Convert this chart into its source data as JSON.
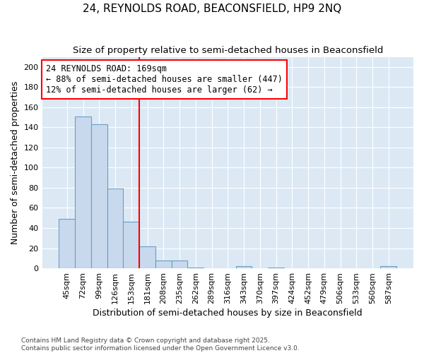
{
  "title": "24, REYNOLDS ROAD, BEACONSFIELD, HP9 2NQ",
  "subtitle": "Size of property relative to semi-detached houses in Beaconsfield",
  "xlabel": "Distribution of semi-detached houses by size in Beaconsfield",
  "ylabel": "Number of semi-detached properties",
  "categories": [
    "45sqm",
    "72sqm",
    "99sqm",
    "126sqm",
    "153sqm",
    "181sqm",
    "208sqm",
    "235sqm",
    "262sqm",
    "289sqm",
    "316sqm",
    "343sqm",
    "370sqm",
    "397sqm",
    "424sqm",
    "452sqm",
    "479sqm",
    "506sqm",
    "533sqm",
    "560sqm",
    "587sqm"
  ],
  "values": [
    49,
    151,
    143,
    79,
    46,
    22,
    8,
    8,
    1,
    0,
    0,
    2,
    0,
    1,
    0,
    0,
    0,
    0,
    0,
    0,
    2
  ],
  "bar_facecolor": "#c8d9ee",
  "bar_edgecolor": "#6b9dc2",
  "red_line_index": 5,
  "annotation_line1": "24 REYNOLDS ROAD: 169sqm",
  "annotation_line2": "← 88% of semi-detached houses are smaller (447)",
  "annotation_line3": "12% of semi-detached houses are larger (62) →",
  "ylim": [
    0,
    210
  ],
  "yticks": [
    0,
    20,
    40,
    60,
    80,
    100,
    120,
    140,
    160,
    180,
    200
  ],
  "fig_facecolor": "#ffffff",
  "ax_facecolor": "#dce9f5",
  "grid_color": "#ffffff",
  "title_fontsize": 11,
  "subtitle_fontsize": 9.5,
  "axis_label_fontsize": 9,
  "tick_fontsize": 8,
  "annotation_fontsize": 8.5,
  "footnote": "Contains HM Land Registry data © Crown copyright and database right 2025.\nContains public sector information licensed under the Open Government Licence v3.0."
}
